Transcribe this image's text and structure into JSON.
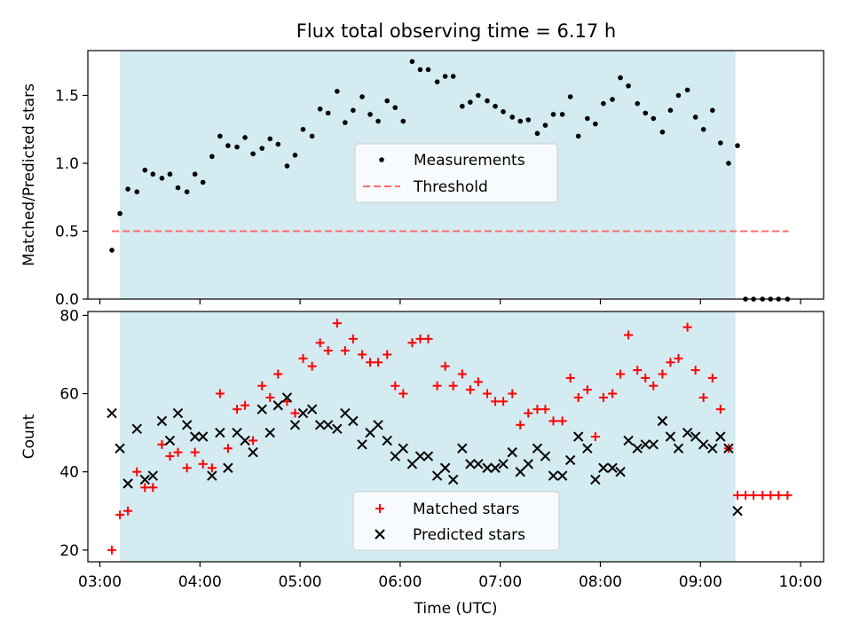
{
  "title": "Flux total observing time = 6.17 h",
  "colors": {
    "shade": "#add8e6",
    "measurement": "#000000",
    "threshold": "#ff6b6b",
    "matched": "#ff0000",
    "predicted": "#000000"
  },
  "chart_data": [
    {
      "type": "scatter",
      "ylabel": "Matched/Predicted stars",
      "xlim": [
        2.88,
        10.23
      ],
      "ylim": [
        0,
        1.83
      ],
      "yticks": [
        0.0,
        0.5,
        1.0,
        1.5
      ],
      "ytick_labels": [
        "0.0",
        "0.5",
        "1.0",
        "1.5"
      ],
      "observing_window": [
        3.2,
        9.35
      ],
      "threshold": {
        "value": 0.5,
        "x_range": [
          3.12,
          9.88
        ]
      },
      "legend": {
        "position": "center",
        "entries": [
          "Measurements",
          "Threshold"
        ]
      },
      "series": [
        {
          "name": "Measurements",
          "x": [
            3.12,
            3.2,
            3.28,
            3.37,
            3.45,
            3.53,
            3.62,
            3.7,
            3.78,
            3.87,
            3.95,
            4.03,
            4.12,
            4.2,
            4.28,
            4.37,
            4.45,
            4.53,
            4.62,
            4.7,
            4.78,
            4.87,
            4.95,
            5.03,
            5.12,
            5.2,
            5.28,
            5.37,
            5.45,
            5.53,
            5.62,
            5.7,
            5.78,
            5.87,
            5.95,
            6.03,
            6.12,
            6.2,
            6.28,
            6.37,
            6.45,
            6.53,
            6.62,
            6.7,
            6.78,
            6.87,
            6.95,
            7.03,
            7.12,
            7.2,
            7.28,
            7.37,
            7.45,
            7.53,
            7.62,
            7.7,
            7.78,
            7.87,
            7.95,
            8.03,
            8.12,
            8.2,
            8.28,
            8.37,
            8.45,
            8.53,
            8.62,
            8.7,
            8.78,
            8.87,
            8.95,
            9.03,
            9.12,
            9.2,
            9.28,
            9.37,
            9.45,
            9.53,
            9.62,
            9.7,
            9.78,
            9.87
          ],
          "y": [
            0.36,
            0.63,
            0.81,
            0.79,
            0.95,
            0.92,
            0.89,
            0.92,
            0.82,
            0.79,
            0.92,
            0.86,
            1.05,
            1.2,
            1.13,
            1.12,
            1.19,
            1.07,
            1.11,
            1.18,
            1.14,
            0.98,
            1.06,
            1.25,
            1.2,
            1.4,
            1.37,
            1.53,
            1.3,
            1.39,
            1.49,
            1.36,
            1.31,
            1.46,
            1.41,
            1.31,
            1.75,
            1.69,
            1.69,
            1.6,
            1.64,
            1.64,
            1.42,
            1.45,
            1.5,
            1.46,
            1.42,
            1.38,
            1.34,
            1.31,
            1.32,
            1.22,
            1.28,
            1.36,
            1.36,
            1.49,
            1.2,
            1.33,
            1.29,
            1.44,
            1.47,
            1.63,
            1.57,
            1.44,
            1.37,
            1.33,
            1.23,
            1.39,
            1.5,
            1.54,
            1.34,
            1.25,
            1.39,
            1.15,
            1.0,
            1.13,
            0.0,
            0.0,
            0.0,
            0.0,
            0.0,
            0.0
          ]
        }
      ]
    },
    {
      "type": "scatter",
      "xlabel": "Time (UTC)",
      "ylabel": "Count",
      "xlim": [
        2.88,
        10.23
      ],
      "ylim": [
        17,
        81
      ],
      "yticks": [
        20,
        40,
        60,
        80
      ],
      "ytick_labels": [
        "20",
        "40",
        "60",
        "80"
      ],
      "xticks": [
        3,
        4,
        5,
        6,
        7,
        8,
        9,
        10
      ],
      "xtick_labels": [
        "03:00",
        "04:00",
        "05:00",
        "06:00",
        "07:00",
        "08:00",
        "09:00",
        "10:00"
      ],
      "observing_window": [
        3.2,
        9.35
      ],
      "legend": {
        "position": "bottom-center",
        "entries": [
          "Matched stars",
          "Predicted stars"
        ]
      },
      "series": [
        {
          "name": "Matched stars",
          "marker": "plus",
          "x": [
            3.12,
            3.2,
            3.28,
            3.37,
            3.45,
            3.53,
            3.62,
            3.7,
            3.78,
            3.87,
            3.95,
            4.03,
            4.12,
            4.2,
            4.28,
            4.37,
            4.45,
            4.53,
            4.62,
            4.7,
            4.78,
            4.87,
            4.95,
            5.03,
            5.12,
            5.2,
            5.28,
            5.37,
            5.45,
            5.53,
            5.62,
            5.7,
            5.78,
            5.87,
            5.95,
            6.03,
            6.12,
            6.2,
            6.28,
            6.37,
            6.45,
            6.53,
            6.62,
            6.7,
            6.78,
            6.87,
            6.95,
            7.03,
            7.12,
            7.2,
            7.28,
            7.37,
            7.45,
            7.53,
            7.62,
            7.7,
            7.78,
            7.87,
            7.95,
            8.03,
            8.12,
            8.2,
            8.28,
            8.37,
            8.45,
            8.53,
            8.62,
            8.7,
            8.78,
            8.87,
            8.95,
            9.03,
            9.12,
            9.2,
            9.28,
            9.37,
            9.45,
            9.53,
            9.62,
            9.7,
            9.78,
            9.87
          ],
          "y": [
            20,
            29,
            30,
            40,
            36,
            36,
            47,
            44,
            45,
            41,
            45,
            42,
            41,
            60,
            46,
            56,
            57,
            48,
            62,
            59,
            65,
            58,
            55,
            69,
            67,
            73,
            71,
            78,
            71,
            74,
            70,
            68,
            68,
            70,
            62,
            60,
            73,
            74,
            74,
            62,
            67,
            62,
            65,
            61,
            63,
            60,
            58,
            58,
            60,
            52,
            55,
            56,
            56,
            53,
            53,
            64,
            59,
            61,
            49,
            59,
            60,
            65,
            75,
            66,
            64,
            62,
            65,
            68,
            69,
            77,
            66,
            59,
            64,
            56,
            46,
            34,
            34,
            34,
            34,
            34,
            34,
            34
          ]
        },
        {
          "name": "Predicted stars",
          "marker": "x",
          "x": [
            3.12,
            3.2,
            3.28,
            3.37,
            3.45,
            3.53,
            3.62,
            3.7,
            3.78,
            3.87,
            3.95,
            4.03,
            4.12,
            4.2,
            4.28,
            4.37,
            4.45,
            4.53,
            4.62,
            4.7,
            4.78,
            4.87,
            4.95,
            5.03,
            5.12,
            5.2,
            5.28,
            5.37,
            5.45,
            5.53,
            5.62,
            5.7,
            5.78,
            5.87,
            5.95,
            6.03,
            6.12,
            6.2,
            6.28,
            6.37,
            6.45,
            6.53,
            6.62,
            6.7,
            6.78,
            6.87,
            6.95,
            7.03,
            7.12,
            7.2,
            7.28,
            7.37,
            7.45,
            7.53,
            7.62,
            7.7,
            7.78,
            7.87,
            7.95,
            8.03,
            8.12,
            8.2,
            8.28,
            8.37,
            8.45,
            8.53,
            8.62,
            8.7,
            8.78,
            8.87,
            8.95,
            9.03,
            9.12,
            9.2,
            9.28,
            9.37
          ],
          "y": [
            55,
            46,
            37,
            51,
            38,
            39,
            53,
            48,
            55,
            52,
            49,
            49,
            39,
            50,
            41,
            50,
            48,
            45,
            56,
            50,
            57,
            59,
            52,
            55,
            56,
            52,
            52,
            51,
            55,
            53,
            47,
            50,
            52,
            48,
            44,
            46,
            42,
            44,
            44,
            39,
            41,
            38,
            46,
            42,
            42,
            41,
            41,
            42,
            45,
            40,
            42,
            46,
            44,
            39,
            39,
            43,
            49,
            46,
            38,
            41,
            41,
            40,
            48,
            46,
            47,
            47,
            53,
            49,
            46,
            50,
            49,
            47,
            46,
            49,
            46,
            30
          ]
        }
      ]
    }
  ]
}
